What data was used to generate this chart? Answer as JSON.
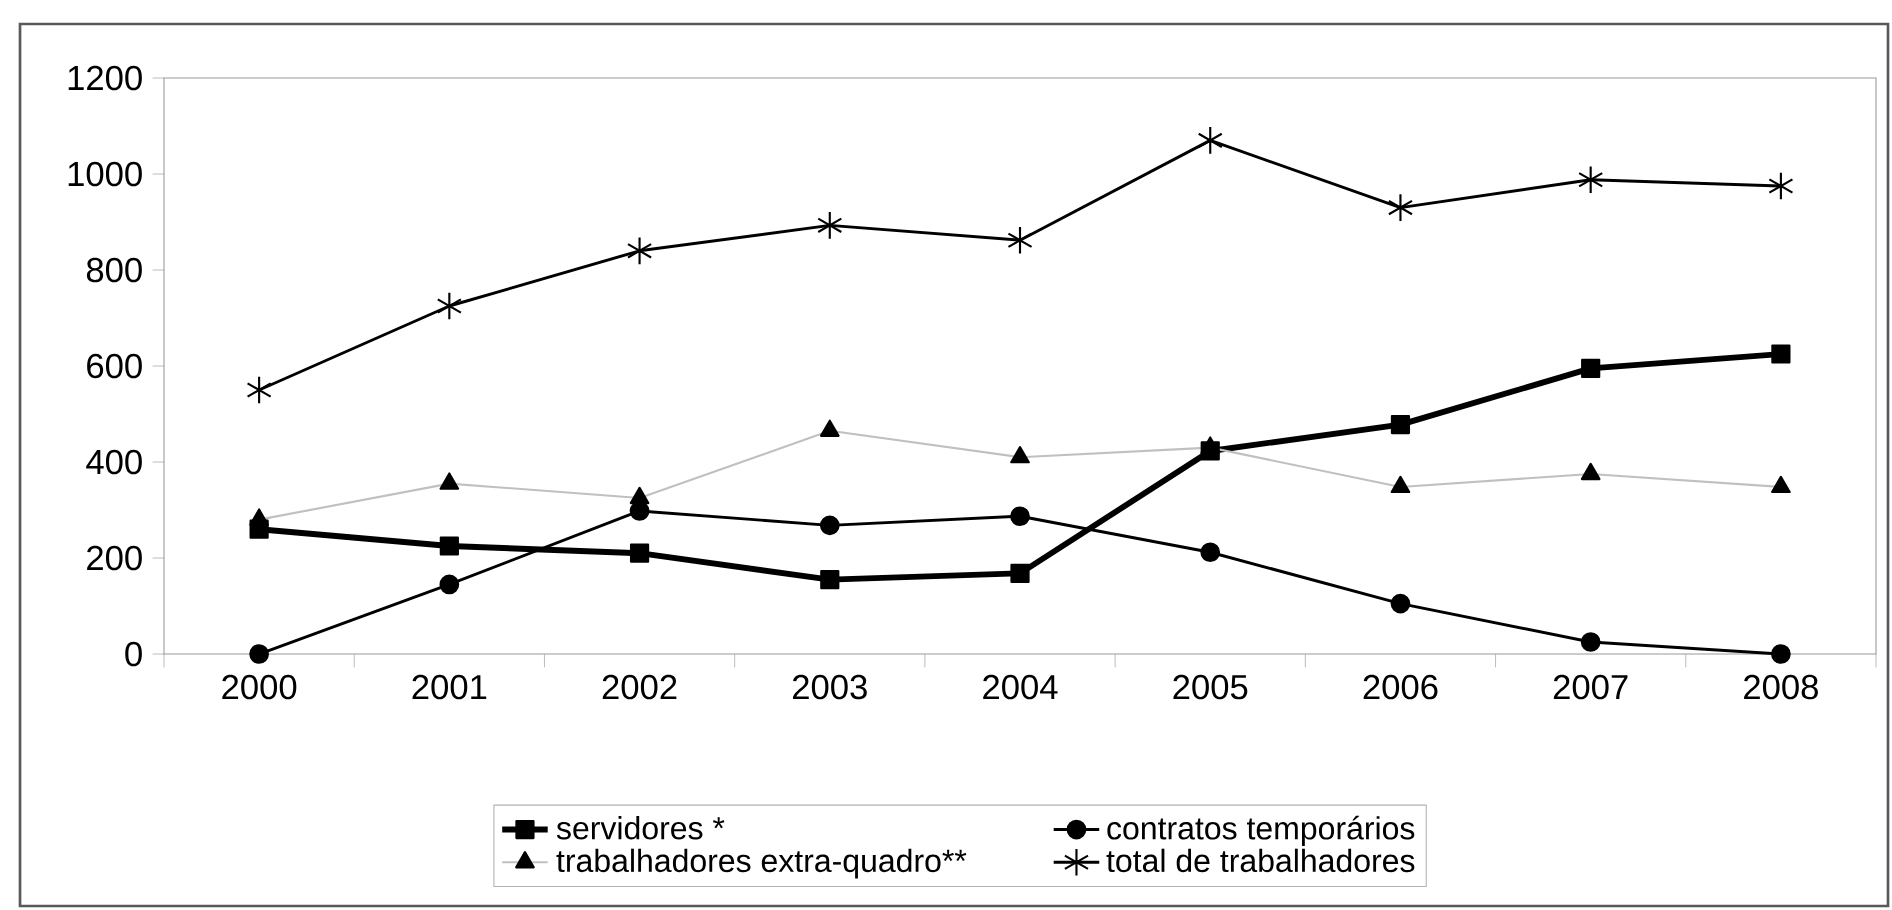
{
  "chart_data": {
    "type": "line",
    "categories": [
      "2000",
      "2001",
      "2002",
      "2003",
      "2004",
      "2005",
      "2006",
      "2007",
      "2008"
    ],
    "series": [
      {
        "name": "servidores *",
        "color": "#000000",
        "marker": "square",
        "values": [
          260,
          225,
          210,
          155,
          168,
          423,
          478,
          595,
          625
        ]
      },
      {
        "name": "contratos temporários",
        "color": "#000000",
        "marker": "circle",
        "values": [
          0,
          145,
          298,
          268,
          287,
          212,
          105,
          25,
          0
        ]
      },
      {
        "name": "trabalhadores extra-quadro**",
        "color": "#c0c0c0",
        "marker": "triangle",
        "values": [
          280,
          355,
          325,
          465,
          410,
          430,
          348,
          375,
          348
        ]
      },
      {
        "name": "total de trabalhadores",
        "color": "#000000",
        "marker": "cross",
        "values": [
          550,
          725,
          840,
          893,
          862,
          1070,
          930,
          988,
          975
        ]
      }
    ],
    "ylim": [
      0,
      1200
    ],
    "yticks": [
      0,
      200,
      400,
      600,
      800,
      1000,
      1200
    ],
    "grid": false,
    "legend": "bottom",
    "line_style": "solid"
  }
}
